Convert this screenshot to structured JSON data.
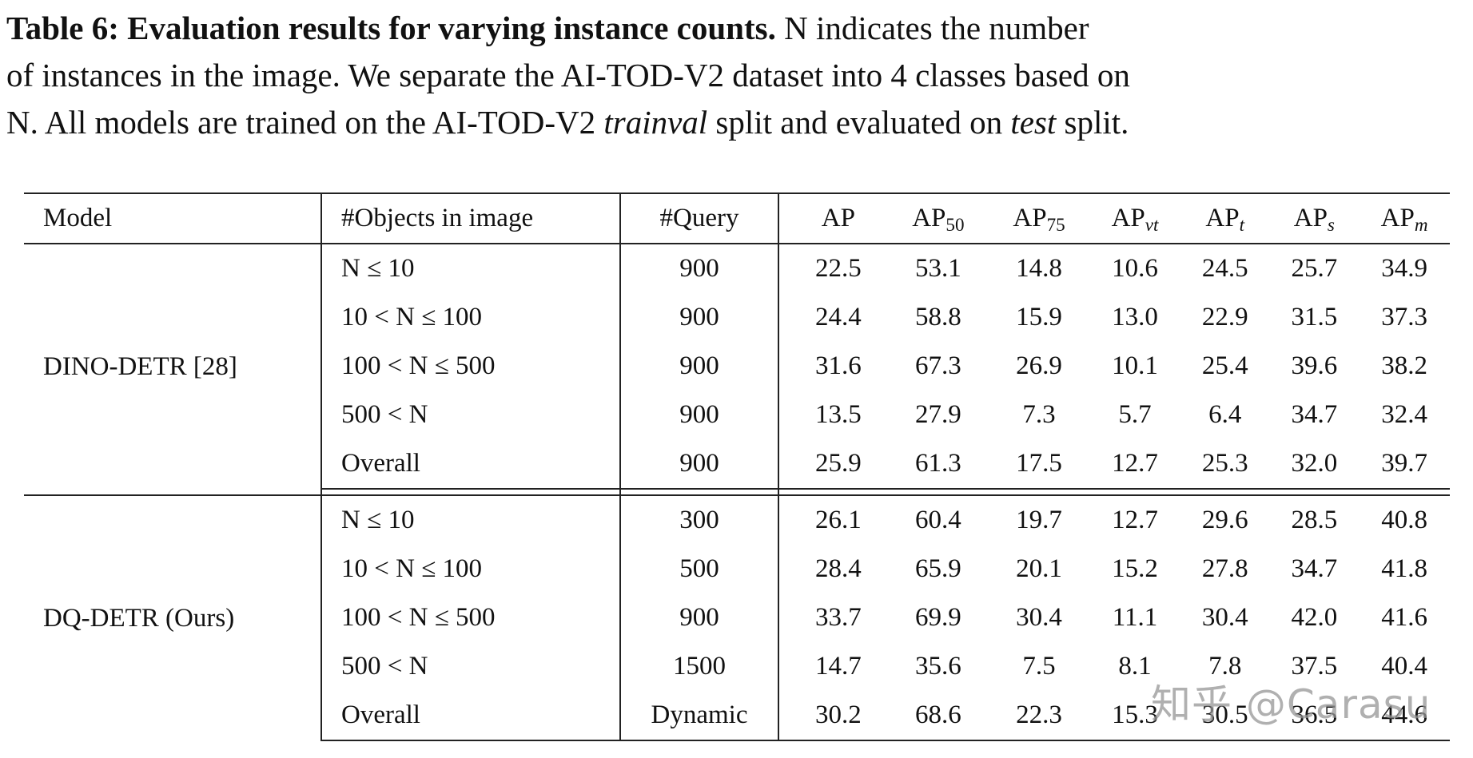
{
  "caption": {
    "label": "Table 6: Evaluation results for varying instance counts.",
    "line1_rest": " N indicates the number",
    "line2": "of instances in the image. We separate the AI-TOD-V2 dataset into 4 classes based on",
    "line3_a": "N. All models are trained on the AI-TOD-V2 ",
    "line3_italic1": "trainval",
    "line3_b": " split and evaluated on ",
    "line3_italic2": "test",
    "line3_c": " split."
  },
  "table": {
    "headers": {
      "model": "Model",
      "objects": "#Objects in image",
      "query": "#Query",
      "metrics": [
        {
          "base": "AP",
          "sub": ""
        },
        {
          "base": "AP",
          "sub": "50"
        },
        {
          "base": "AP",
          "sub": "75"
        },
        {
          "base": "AP",
          "sub": "vt"
        },
        {
          "base": "AP",
          "sub": "t"
        },
        {
          "base": "AP",
          "sub": "s"
        },
        {
          "base": "AP",
          "sub": "m"
        }
      ]
    },
    "groups": [
      {
        "model": "DINO-DETR [28]",
        "rows": [
          {
            "objects": "N ≤ 10",
            "query": "900",
            "values": [
              "22.5",
              "53.1",
              "14.8",
              "10.6",
              "24.5",
              "25.7",
              "34.9"
            ]
          },
          {
            "objects": "10 < N ≤ 100",
            "query": "900",
            "values": [
              "24.4",
              "58.8",
              "15.9",
              "13.0",
              "22.9",
              "31.5",
              "37.3"
            ]
          },
          {
            "objects": "100 < N ≤ 500",
            "query": "900",
            "values": [
              "31.6",
              "67.3",
              "26.9",
              "10.1",
              "25.4",
              "39.6",
              "38.2"
            ]
          },
          {
            "objects": "500 < N",
            "query": "900",
            "values": [
              "13.5",
              "27.9",
              "7.3",
              "5.7",
              "6.4",
              "34.7",
              "32.4"
            ]
          },
          {
            "objects": "Overall",
            "query": "900",
            "values": [
              "25.9",
              "61.3",
              "17.5",
              "12.7",
              "25.3",
              "32.0",
              "39.7"
            ]
          }
        ]
      },
      {
        "model": "DQ-DETR (Ours)",
        "rows": [
          {
            "objects": "N ≤ 10",
            "query": "300",
            "values": [
              "26.1",
              "60.4",
              "19.7",
              "12.7",
              "29.6",
              "28.5",
              "40.8"
            ]
          },
          {
            "objects": "10 < N ≤ 100",
            "query": "500",
            "values": [
              "28.4",
              "65.9",
              "20.1",
              "15.2",
              "27.8",
              "34.7",
              "41.8"
            ]
          },
          {
            "objects": "100 < N ≤ 500",
            "query": "900",
            "values": [
              "33.7",
              "69.9",
              "30.4",
              "11.1",
              "30.4",
              "42.0",
              "41.6"
            ]
          },
          {
            "objects": "500 < N",
            "query": "1500",
            "values": [
              "14.7",
              "35.6",
              "7.5",
              "8.1",
              "7.8",
              "37.5",
              "40.4"
            ]
          },
          {
            "objects": "Overall",
            "query": "Dynamic",
            "values": [
              "30.2",
              "68.6",
              "22.3",
              "15.3",
              "30.5",
              "36.5",
              "44.6"
            ]
          }
        ]
      }
    ]
  },
  "watermark": "知乎 @Carasu"
}
